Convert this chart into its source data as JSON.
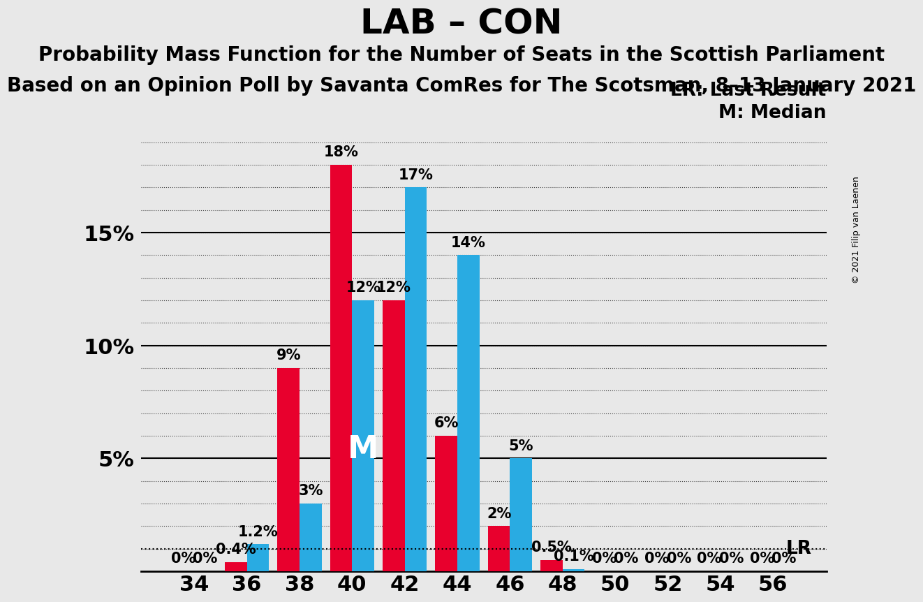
{
  "title": "LAB – CON",
  "subtitle1": "Probability Mass Function for the Number of Seats in the Scottish Parliament",
  "subtitle2": "Based on an Opinion Poll by Savanta ComRes for The Scotsman, 8–13 January 2021",
  "copyright": "© 2021 Filip van Laenen",
  "legend_lr": "LR: Last Result",
  "legend_m": "M: Median",
  "seats": [
    34,
    36,
    38,
    40,
    42,
    44,
    46,
    48,
    50,
    52,
    54,
    56
  ],
  "red_values": [
    0.0,
    0.4,
    9.0,
    18.0,
    12.0,
    6.0,
    2.0,
    0.5,
    0.0,
    0.0,
    0.0,
    0.0
  ],
  "blue_values": [
    0.0,
    1.2,
    3.0,
    12.0,
    17.0,
    14.0,
    5.0,
    0.1,
    0.0,
    0.0,
    0.0,
    0.0
  ],
  "red_labels": [
    "0%",
    "0.4%",
    "9%",
    "18%",
    "12%",
    "6%",
    "2%",
    "0.5%",
    "0%",
    "0%",
    "0%",
    "0%"
  ],
  "blue_labels": [
    "0%",
    "1.2%",
    "3%",
    "12%",
    "17%",
    "14%",
    "5%",
    "0.1%",
    "0%",
    "0%",
    "0%",
    "0%"
  ],
  "red_color": "#E8002D",
  "blue_color": "#29ABE2",
  "background_color": "#E8E8E8",
  "bar_width": 0.42,
  "ylim": [
    0,
    20
  ],
  "lr_value": 1.0,
  "median_seat": 40,
  "title_fontsize": 36,
  "subtitle_fontsize": 20,
  "label_fontsize": 15,
  "tick_fontsize": 22,
  "legend_fontsize": 19,
  "m_fontsize": 32,
  "copyright_fontsize": 9
}
